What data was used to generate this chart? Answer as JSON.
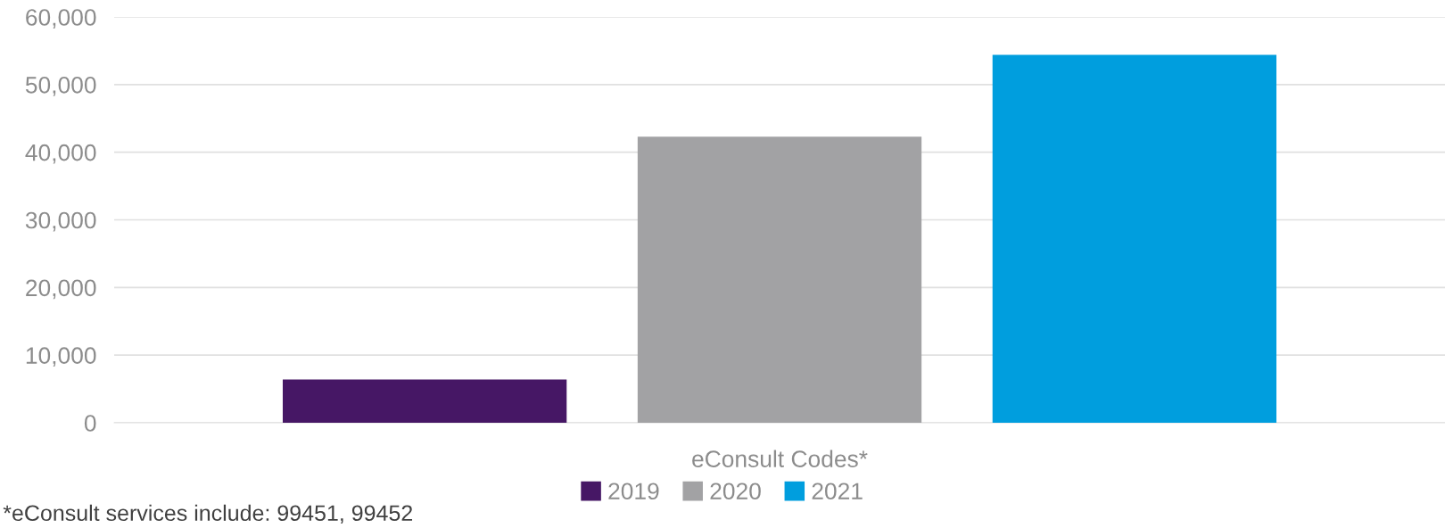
{
  "chart_data": {
    "type": "bar",
    "categories": [
      "eConsult Codes*"
    ],
    "series": [
      {
        "name": "2019",
        "color": "#461765",
        "values": [
          6400
        ]
      },
      {
        "name": "2020",
        "color": "#a2a2a4",
        "values": [
          42300
        ]
      },
      {
        "name": "2021",
        "color": "#009ede",
        "values": [
          54400
        ]
      }
    ],
    "ylim": [
      0,
      60000
    ],
    "yticks": [
      {
        "value": 0,
        "label": "0"
      },
      {
        "value": 10000,
        "label": "10,000"
      },
      {
        "value": 20000,
        "label": "20,000"
      },
      {
        "value": 30000,
        "label": "30,000"
      },
      {
        "value": 40000,
        "label": "40,000"
      },
      {
        "value": 50000,
        "label": "50,000"
      },
      {
        "value": 60000,
        "label": "60,000"
      }
    ],
    "grid": "y",
    "legend": "bottom",
    "annotations": [
      "*eConsult services include: 99451, 99452"
    ]
  }
}
